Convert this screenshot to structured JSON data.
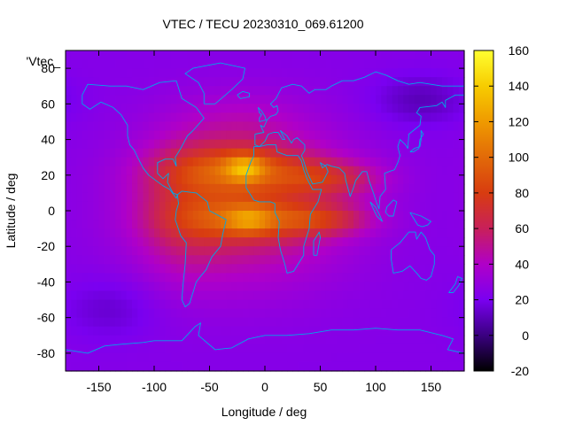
{
  "chart_data": {
    "type": "heatmap",
    "title": "VTEC / TECU 20230310_069.61200",
    "xlabel": "Longitude / deg",
    "ylabel": "Latitude / deg",
    "legend_label": "'Vtec_",
    "xlim": [
      -180,
      180
    ],
    "ylim": [
      -90,
      90
    ],
    "x_ticks": [
      -150,
      -100,
      -50,
      0,
      50,
      100,
      150
    ],
    "y_ticks": [
      -80,
      -60,
      -40,
      -20,
      0,
      20,
      40,
      60,
      80
    ],
    "colorbar": {
      "range": [
        -20,
        160
      ],
      "ticks": [
        -20,
        0,
        20,
        40,
        60,
        80,
        100,
        120,
        140,
        160
      ],
      "stops": [
        {
          "v": -20,
          "color": "#000000"
        },
        {
          "v": 0,
          "color": "#3a0080"
        },
        {
          "v": 20,
          "color": "#7a00f0"
        },
        {
          "v": 40,
          "color": "#b000c8"
        },
        {
          "v": 60,
          "color": "#c8205a"
        },
        {
          "v": 80,
          "color": "#d83c10"
        },
        {
          "v": 100,
          "color": "#e26a08"
        },
        {
          "v": 120,
          "color": "#ef9a00"
        },
        {
          "v": 140,
          "color": "#f7cc00"
        },
        {
          "v": 160,
          "color": "#ffff30"
        }
      ]
    },
    "field": {
      "background_vtec": 24,
      "features": [
        {
          "name": "day-side bulge",
          "lon": -20,
          "lat": 5,
          "sigma_lon": 65,
          "sigma_lat": 30,
          "amp": 40
        },
        {
          "name": "north crest",
          "lon": -25,
          "lat": 23,
          "sigma_lon": 45,
          "sigma_lat": 9,
          "amp": 40
        },
        {
          "name": "north crest core",
          "lon": -18,
          "lat": 24,
          "sigma_lon": 12,
          "sigma_lat": 5,
          "amp": 40
        },
        {
          "name": "south crest",
          "lon": -15,
          "lat": -5,
          "sigma_lon": 45,
          "sigma_lat": 8,
          "amp": 34
        },
        {
          "name": "south crest core",
          "lon": -15,
          "lat": -5,
          "sigma_lon": 14,
          "sigma_lat": 5,
          "amp": 28
        },
        {
          "name": "east tongue north",
          "lon": 60,
          "lat": 18,
          "sigma_lon": 32,
          "sigma_lat": 7,
          "amp": 30
        },
        {
          "name": "east tongue south",
          "lon": 55,
          "lat": -5,
          "sigma_lon": 30,
          "sigma_lat": 6,
          "amp": 28
        },
        {
          "name": "american extension",
          "lon": -75,
          "lat": 0,
          "sigma_lon": 28,
          "sigma_lat": 25,
          "amp": 18
        },
        {
          "name": "south-pacific low",
          "lon": -140,
          "lat": -55,
          "sigma_lon": 30,
          "sigma_lat": 12,
          "amp": -10
        },
        {
          "name": "siberian low",
          "lon": 140,
          "lat": 62,
          "sigma_lon": 30,
          "sigma_lat": 10,
          "amp": -14
        },
        {
          "name": "atlantic hemisphere high",
          "lon": -20,
          "lat": 50,
          "sigma_lon": 40,
          "sigma_lat": 12,
          "amp": 8
        }
      ]
    },
    "coastline_color": "#00a8e8"
  }
}
